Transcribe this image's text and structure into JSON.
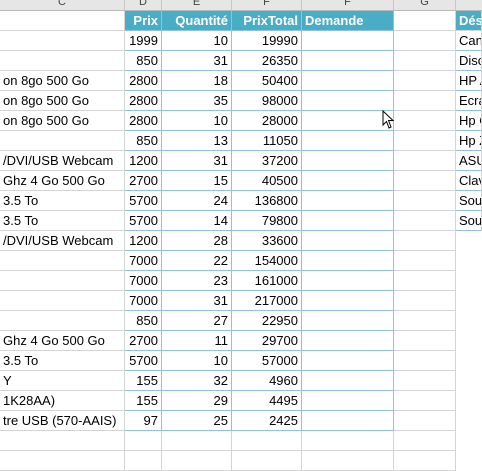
{
  "columns": [
    "C",
    "D",
    "E",
    "F",
    "G"
  ],
  "table": {
    "headers": [
      "",
      "Prix",
      "Quantité",
      "PrixTotal",
      "Demande"
    ],
    "rows": [
      [
        "",
        "1999",
        "10",
        "19990",
        ""
      ],
      [
        "",
        "850",
        "31",
        "26350",
        ""
      ],
      [
        "on 8go 500 Go",
        "2800",
        "18",
        "50400",
        ""
      ],
      [
        "on 8go 500 Go",
        "2800",
        "35",
        "98000",
        ""
      ],
      [
        "on 8go 500 Go",
        "2800",
        "10",
        "28000",
        ""
      ],
      [
        "",
        "850",
        "13",
        "11050",
        ""
      ],
      [
        "/DVI/USB Webcam",
        "1200",
        "31",
        "37200",
        ""
      ],
      [
        "Ghz 4 Go 500 Go",
        "2700",
        "15",
        "40500",
        ""
      ],
      [
        "3.5 To",
        "5700",
        "24",
        "136800",
        ""
      ],
      [
        "3.5 To",
        "5700",
        "14",
        "79800",
        ""
      ],
      [
        "/DVI/USB Webcam",
        "1200",
        "28",
        "33600",
        ""
      ],
      [
        "",
        "7000",
        "22",
        "154000",
        ""
      ],
      [
        "",
        "7000",
        "23",
        "161000",
        ""
      ],
      [
        "",
        "7000",
        "31",
        "217000",
        ""
      ],
      [
        "",
        "850",
        "27",
        "22950",
        ""
      ],
      [
        "Ghz 4 Go 500 Go",
        "2700",
        "11",
        "29700",
        ""
      ],
      [
        "3.5 To",
        "5700",
        "10",
        "57000",
        ""
      ],
      [
        "Y",
        "155",
        "32",
        "4960",
        ""
      ],
      [
        "1K28AA)",
        "155",
        "29",
        "4495",
        ""
      ],
      [
        "tre USB (570-AAIS)",
        "97",
        "25",
        "2425",
        ""
      ]
    ]
  },
  "side_table": {
    "header": "Dés",
    "items": [
      "Can",
      "Disc",
      "HP A",
      "Ecra",
      "Hp C",
      "Hp Z",
      "ASU",
      "Clav",
      "Sou",
      "Sou"
    ]
  },
  "colors": {
    "header_bg": "#4bacc6",
    "header_text": "#ffffff",
    "grid": "#d4d4d4"
  }
}
